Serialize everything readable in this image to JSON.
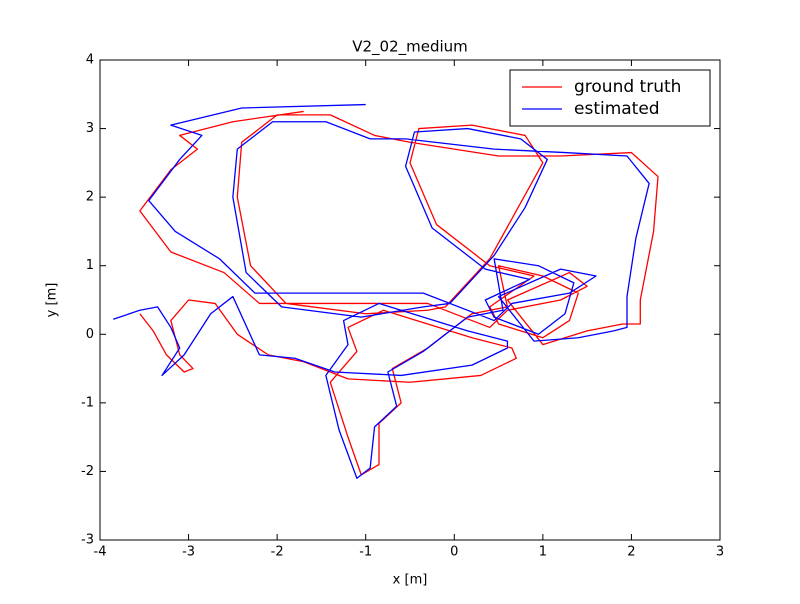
{
  "chart_data": {
    "type": "line",
    "title": "V2_02_medium",
    "x_label": "x [m]",
    "y_label": "y [m]",
    "xlim": [
      -4,
      3
    ],
    "ylim": [
      -3,
      4
    ],
    "xticks": [
      -4,
      -3,
      -2,
      -1,
      0,
      1,
      2,
      3
    ],
    "yticks": [
      -3,
      -2,
      -1,
      0,
      1,
      2,
      3,
      4
    ],
    "legend": "upper right",
    "series": [
      {
        "name": "ground truth",
        "color": "#ff0000",
        "x": [
          -3.55,
          -3.4,
          -3.25,
          -3.05,
          -2.95,
          -3.1,
          -3.2,
          -3.0,
          -2.7,
          -2.45,
          -2.1,
          -1.7,
          -1.2,
          -0.5,
          0.3,
          0.7,
          0.65,
          0.2,
          -0.3,
          -0.8,
          -1.2,
          -1.1,
          -1.4,
          -1.2,
          -1.05,
          -0.85,
          -0.85,
          -0.6,
          -0.7,
          -0.3,
          0.2,
          0.6,
          0.5,
          1.0,
          1.4,
          1.3,
          1.0,
          0.5,
          0.4,
          0.9,
          0.4,
          -0.2,
          -0.5,
          -0.4,
          0.2,
          0.8,
          1.0,
          0.7,
          0.4,
          -0.1,
          -0.3,
          -1.0,
          -1.9,
          -2.3,
          -2.45,
          -2.4,
          -2.0,
          -1.4,
          -0.9,
          -0.5,
          0.5,
          1.2,
          2.0,
          2.3,
          2.25,
          2.1,
          2.1,
          1.9,
          1.5,
          1.0,
          0.6,
          1.3,
          1.5,
          1.2,
          0.6,
          0.4,
          -0.3,
          -1.1,
          -2.2,
          -2.6,
          -3.2,
          -3.55,
          -3.2,
          -2.9,
          -3.1,
          -2.5,
          -1.7
        ],
        "values": [
          0.3,
          0.05,
          -0.3,
          -0.55,
          -0.5,
          -0.3,
          0.2,
          0.5,
          0.45,
          0.0,
          -0.3,
          -0.4,
          -0.65,
          -0.7,
          -0.6,
          -0.35,
          -0.2,
          -0.05,
          0.15,
          0.35,
          0.1,
          -0.25,
          -0.7,
          -1.5,
          -2.05,
          -1.9,
          -1.3,
          -1.0,
          -0.5,
          -0.2,
          0.3,
          0.4,
          1.0,
          0.85,
          0.6,
          0.2,
          -0.05,
          0.15,
          0.4,
          0.85,
          1.0,
          1.6,
          2.5,
          3.0,
          3.05,
          2.9,
          2.5,
          1.8,
          1.1,
          0.4,
          0.35,
          0.3,
          0.45,
          1.0,
          2.0,
          2.8,
          3.2,
          3.2,
          2.9,
          2.8,
          2.6,
          2.6,
          2.65,
          2.3,
          1.5,
          0.5,
          0.15,
          0.15,
          0.05,
          -0.15,
          0.5,
          0.9,
          0.7,
          0.5,
          0.35,
          0.1,
          0.45,
          0.45,
          0.45,
          0.9,
          1.2,
          1.8,
          2.4,
          2.7,
          2.9,
          3.1,
          3.25
        ]
      },
      {
        "name": "estimated",
        "color": "#0000ff",
        "x": [
          -3.85,
          -3.55,
          -3.35,
          -3.2,
          -3.1,
          -3.25,
          -3.3,
          -3.05,
          -2.75,
          -2.5,
          -2.2,
          -1.8,
          -1.35,
          -0.6,
          0.2,
          0.6,
          0.6,
          0.15,
          -0.35,
          -0.85,
          -1.25,
          -1.2,
          -1.45,
          -1.3,
          -1.1,
          -0.95,
          -0.9,
          -0.65,
          -0.75,
          -0.35,
          0.15,
          0.55,
          0.45,
          0.95,
          1.35,
          1.25,
          0.95,
          0.45,
          0.35,
          0.85,
          0.35,
          -0.25,
          -0.55,
          -0.45,
          0.15,
          0.75,
          1.05,
          0.8,
          0.45,
          -0.05,
          -0.35,
          -1.05,
          -1.95,
          -2.35,
          -2.5,
          -2.45,
          -2.05,
          -1.45,
          -0.95,
          -0.55,
          0.45,
          1.25,
          1.95,
          2.2,
          2.05,
          1.95,
          1.95,
          1.8,
          1.4,
          0.9,
          0.5,
          1.2,
          1.6,
          1.3,
          0.65,
          0.45,
          -0.35,
          -1.15,
          -2.25,
          -2.65,
          -3.15,
          -3.45,
          -3.1,
          -2.85,
          -3.2,
          -2.4,
          -1.0
        ],
        "values": [
          0.22,
          0.35,
          0.4,
          0.1,
          -0.2,
          -0.5,
          -0.6,
          -0.3,
          0.3,
          0.55,
          -0.3,
          -0.35,
          -0.55,
          -0.6,
          -0.45,
          -0.2,
          -0.1,
          0.05,
          0.25,
          0.45,
          0.2,
          -0.15,
          -0.6,
          -1.4,
          -2.1,
          -1.95,
          -1.35,
          -1.05,
          -0.55,
          -0.25,
          0.25,
          0.35,
          1.1,
          1.0,
          0.75,
          0.3,
          0.0,
          0.25,
          0.5,
          0.8,
          0.95,
          1.55,
          2.45,
          2.95,
          3.0,
          2.85,
          2.55,
          1.85,
          1.15,
          0.45,
          0.4,
          0.25,
          0.4,
          0.9,
          2.0,
          2.7,
          3.1,
          3.1,
          2.85,
          2.85,
          2.7,
          2.65,
          2.6,
          2.2,
          1.4,
          0.55,
          0.1,
          0.05,
          -0.05,
          -0.1,
          0.55,
          0.95,
          0.85,
          0.6,
          0.45,
          0.2,
          0.6,
          0.6,
          0.6,
          1.1,
          1.5,
          1.95,
          2.55,
          2.9,
          3.05,
          3.3,
          3.35
        ]
      }
    ]
  }
}
